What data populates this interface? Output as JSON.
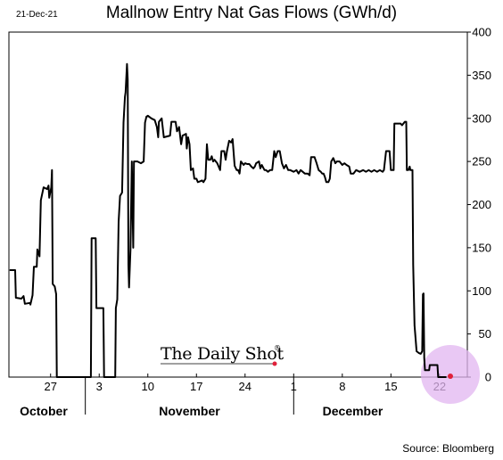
{
  "header": {
    "date": "21-Dec-21",
    "title": "Mallnow Entry Nat Gas Flows (GWh/d)"
  },
  "footer": {
    "source": "Source: Bloomberg"
  },
  "watermark": {
    "text": "The Daily Shot",
    "reg": "®"
  },
  "chart_data": {
    "type": "line",
    "title": "Mallnow Entry Nat Gas Flows (GWh/d)",
    "ylim": [
      0,
      400
    ],
    "y_ticks": [
      0,
      50,
      100,
      150,
      200,
      250,
      300,
      350,
      400
    ],
    "x_tick_labels": [
      {
        "label": "27",
        "day": 27
      },
      {
        "label": "3",
        "day": 34
      },
      {
        "label": "10",
        "day": 41
      },
      {
        "label": "17",
        "day": 48
      },
      {
        "label": "24",
        "day": 55
      },
      {
        "label": "1",
        "day": 62
      },
      {
        "label": "8",
        "day": 69
      },
      {
        "label": "15",
        "day": 76
      },
      {
        "label": "22",
        "day": 83
      }
    ],
    "month_labels": [
      {
        "label": "October",
        "day": 26
      },
      {
        "label": "November",
        "day": 47
      },
      {
        "label": "December",
        "day": 70.5
      }
    ],
    "month_boundaries": [
      32,
      62
    ],
    "x_range": [
      21,
      87
    ],
    "series": [
      {
        "points": [
          [
            21.1,
            124
          ],
          [
            21.9,
            124
          ],
          [
            22.0,
            92
          ],
          [
            22.8,
            91
          ],
          [
            23.1,
            94
          ],
          [
            23.3,
            85
          ],
          [
            24.0,
            86
          ],
          [
            24.1,
            84
          ],
          [
            24.4,
            95
          ],
          [
            24.6,
            128
          ],
          [
            25.0,
            128
          ],
          [
            25.1,
            148
          ],
          [
            25.4,
            140
          ],
          [
            25.6,
            205
          ],
          [
            26.0,
            220
          ],
          [
            26.5,
            218
          ],
          [
            26.7,
            222
          ],
          [
            26.8,
            208
          ],
          [
            27.1,
            220
          ],
          [
            27.2,
            240
          ],
          [
            27.3,
            108
          ],
          [
            27.6,
            105
          ],
          [
            27.8,
            96
          ],
          [
            27.9,
            0
          ],
          [
            32.8,
            0
          ],
          [
            32.9,
            161
          ],
          [
            33.5,
            161
          ],
          [
            33.6,
            80
          ],
          [
            34.6,
            80
          ],
          [
            34.7,
            0
          ],
          [
            36.3,
            0
          ],
          [
            36.4,
            80
          ],
          [
            36.6,
            90
          ],
          [
            36.8,
            180
          ],
          [
            37.0,
            210
          ],
          [
            37.3,
            214
          ],
          [
            37.5,
            295
          ],
          [
            37.7,
            325
          ],
          [
            37.8,
            330
          ],
          [
            38.0,
            363
          ],
          [
            38.1,
            345
          ],
          [
            38.2,
            130
          ],
          [
            38.3,
            104
          ],
          [
            38.5,
            148
          ],
          [
            38.7,
            250
          ],
          [
            38.9,
            150
          ],
          [
            39.0,
            250
          ],
          [
            39.5,
            250
          ],
          [
            40.0,
            248
          ],
          [
            40.4,
            250
          ],
          [
            40.6,
            295
          ],
          [
            40.8,
            302
          ],
          [
            41.0,
            303
          ],
          [
            41.5,
            300
          ],
          [
            42.0,
            298
          ],
          [
            42.3,
            290
          ],
          [
            42.5,
            278
          ],
          [
            42.6,
            296
          ],
          [
            43.0,
            300
          ],
          [
            43.3,
            278
          ],
          [
            44.2,
            280
          ],
          [
            44.4,
            296
          ],
          [
            45.0,
            296
          ],
          [
            45.2,
            285
          ],
          [
            45.5,
            290
          ],
          [
            45.8,
            270
          ],
          [
            46.0,
            280
          ],
          [
            46.5,
            282
          ],
          [
            46.6,
            265
          ],
          [
            46.8,
            278
          ],
          [
            47.0,
            270
          ],
          [
            47.2,
            240
          ],
          [
            47.5,
            242
          ],
          [
            47.7,
            230
          ],
          [
            48.0,
            230
          ],
          [
            48.2,
            226
          ],
          [
            48.5,
            227
          ],
          [
            48.8,
            228
          ],
          [
            49.0,
            226
          ],
          [
            49.3,
            230
          ],
          [
            49.5,
            270
          ],
          [
            49.7,
            252
          ],
          [
            50.0,
            252
          ],
          [
            50.2,
            256
          ],
          [
            50.4,
            250
          ],
          [
            50.6,
            252
          ],
          [
            51.0,
            248
          ],
          [
            51.4,
            240
          ],
          [
            51.6,
            262
          ],
          [
            52.0,
            262
          ],
          [
            52.2,
            252
          ],
          [
            52.4,
            262
          ],
          [
            52.7,
            274
          ],
          [
            53.0,
            272
          ],
          [
            53.2,
            276
          ],
          [
            53.5,
            245
          ],
          [
            53.8,
            240
          ],
          [
            54.0,
            240
          ],
          [
            54.2,
            236
          ],
          [
            54.4,
            250
          ],
          [
            54.8,
            246
          ],
          [
            55.0,
            248
          ],
          [
            55.3,
            247
          ],
          [
            55.6,
            247
          ],
          [
            55.9,
            244
          ],
          [
            56.2,
            242
          ],
          [
            56.4,
            244
          ],
          [
            56.6,
            248
          ],
          [
            57.0,
            250
          ],
          [
            57.2,
            242
          ],
          [
            57.4,
            246
          ],
          [
            57.8,
            240
          ],
          [
            58.0,
            240
          ],
          [
            58.3,
            238
          ],
          [
            58.6,
            240
          ],
          [
            58.9,
            240
          ],
          [
            59.2,
            262
          ],
          [
            59.4,
            255
          ],
          [
            59.7,
            262
          ],
          [
            60.0,
            262
          ],
          [
            60.3,
            248
          ],
          [
            60.6,
            242
          ],
          [
            60.9,
            246
          ],
          [
            61.2,
            240
          ],
          [
            61.5,
            240
          ],
          [
            62.0,
            238
          ],
          [
            62.4,
            240
          ],
          [
            62.7,
            236
          ],
          [
            63.0,
            240
          ],
          [
            63.3,
            238
          ],
          [
            63.6,
            236
          ],
          [
            64.0,
            236
          ],
          [
            64.3,
            234
          ],
          [
            64.5,
            255
          ],
          [
            65.0,
            255
          ],
          [
            65.3,
            248
          ],
          [
            65.6,
            240
          ],
          [
            65.9,
            238
          ],
          [
            66.1,
            236
          ],
          [
            66.3,
            236
          ],
          [
            66.5,
            232
          ],
          [
            66.7,
            226
          ],
          [
            67.0,
            226
          ],
          [
            67.2,
            230
          ],
          [
            67.4,
            250
          ],
          [
            67.7,
            254
          ],
          [
            68.0,
            248
          ],
          [
            68.2,
            250
          ],
          [
            68.6,
            250
          ],
          [
            69.0,
            246
          ],
          [
            69.3,
            248
          ],
          [
            69.6,
            246
          ],
          [
            70.0,
            244
          ],
          [
            70.2,
            236
          ],
          [
            70.6,
            236
          ],
          [
            71.0,
            240
          ],
          [
            71.5,
            238
          ],
          [
            72.0,
            240
          ],
          [
            72.4,
            238
          ],
          [
            72.8,
            240
          ],
          [
            73.2,
            238
          ],
          [
            73.6,
            240
          ],
          [
            74.0,
            238
          ],
          [
            74.4,
            240
          ],
          [
            74.8,
            238
          ],
          [
            75.0,
            240
          ],
          [
            75.3,
            262
          ],
          [
            75.8,
            262
          ],
          [
            76.0,
            240
          ],
          [
            76.4,
            240
          ],
          [
            76.5,
            294
          ],
          [
            77.0,
            294
          ],
          [
            77.4,
            294
          ],
          [
            77.6,
            292
          ],
          [
            78.0,
            296
          ],
          [
            78.2,
            296
          ],
          [
            78.3,
            240
          ],
          [
            78.5,
            240
          ],
          [
            78.7,
            244
          ],
          [
            78.8,
            240
          ],
          [
            79.1,
            240
          ],
          [
            79.2,
            130
          ],
          [
            79.4,
            60
          ],
          [
            79.7,
            30
          ],
          [
            80.0,
            28
          ],
          [
            80.3,
            27
          ],
          [
            80.5,
            30
          ],
          [
            80.6,
            96
          ],
          [
            80.7,
            97
          ],
          [
            80.8,
            22
          ],
          [
            80.9,
            8
          ],
          [
            81.5,
            8
          ],
          [
            81.6,
            14
          ],
          [
            82.7,
            14
          ],
          [
            82.8,
            0
          ],
          [
            84.0,
            0
          ]
        ]
      }
    ]
  }
}
